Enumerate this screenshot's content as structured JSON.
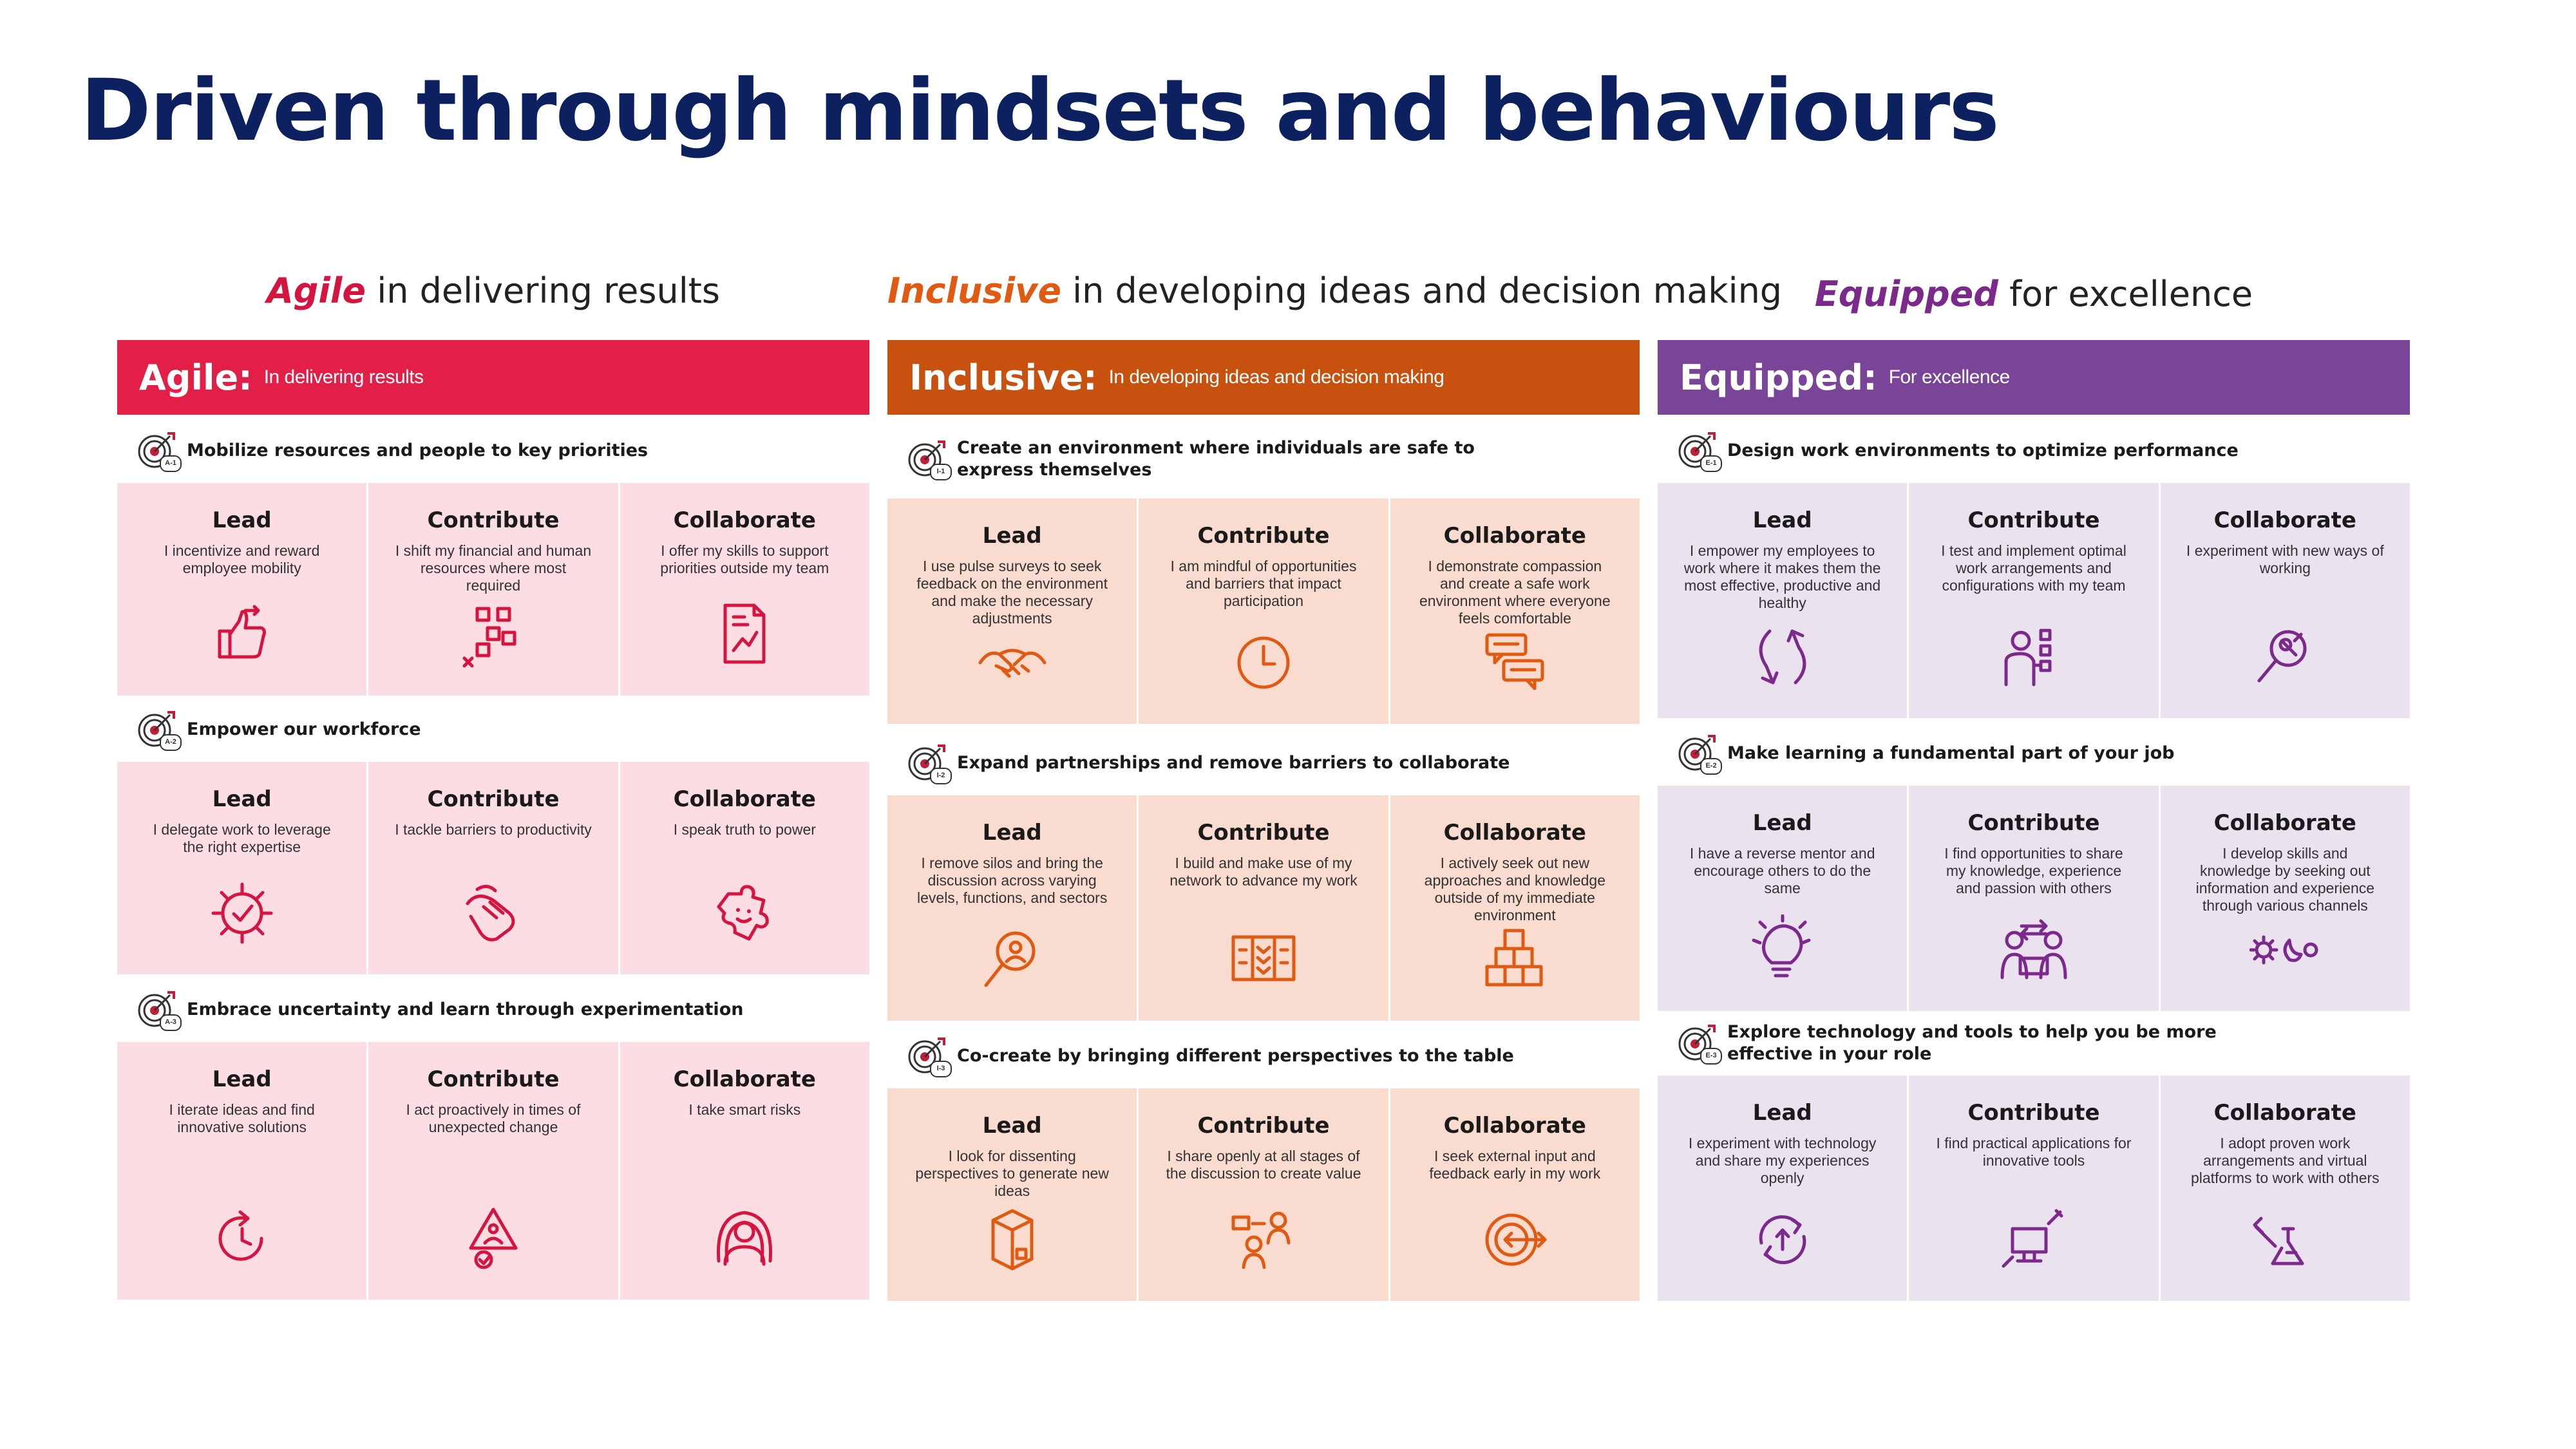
{
  "page_title": "Driven through mindsets and behaviours",
  "columns": [
    {
      "heading_emph": "Agile",
      "heading_rest": " in delivering results",
      "heading_color": "#d5143f",
      "banner_name": "Agile:",
      "banner_sub": "In delivering results",
      "banner_color": "#e31f47",
      "card_bg": "#fbdde3",
      "icon_color": "#d5143f",
      "sections": [
        {
          "code": "A-1",
          "title": "Mobilize resources and people to key priorities",
          "cards": [
            {
              "label": "Lead",
              "text": "I incentivize and reward employee mobility",
              "icon": "thumbs-up-icon"
            },
            {
              "label": "Contribute",
              "text": "I shift my financial and human resources where most required",
              "icon": "network-blocks-icon"
            },
            {
              "label": "Collaborate",
              "text": "I offer my skills to support priorities outside my team",
              "icon": "document-chart-icon"
            }
          ]
        },
        {
          "code": "A-2",
          "title": "Empower our workforce",
          "cards": [
            {
              "label": "Lead",
              "text": "I delegate work to leverage the right expertise",
              "icon": "gear-check-icon"
            },
            {
              "label": "Contribute",
              "text": "I tackle barriers to productivity",
              "icon": "hand-pointer-icon"
            },
            {
              "label": "Collaborate",
              "text": "I speak truth to power",
              "icon": "puzzle-face-icon"
            }
          ]
        },
        {
          "code": "A-3",
          "title": "Embrace uncertainty and learn through experimentation",
          "cards": [
            {
              "label": "Lead",
              "text": "I iterate ideas and find innovative solutions",
              "icon": "refresh-clock-icon"
            },
            {
              "label": "Contribute",
              "text": "I act proactively in times of unexpected change",
              "icon": "warning-person-icon"
            },
            {
              "label": "Collaborate",
              "text": "I take smart risks",
              "icon": "person-rings-icon"
            }
          ]
        }
      ]
    },
    {
      "heading_emph": "Inclusive",
      "heading_rest": " in developing ideas and decision making",
      "heading_color": "#e05a12",
      "banner_name": "Inclusive:",
      "banner_sub": "In developing ideas and decision making",
      "banner_color": "#c9510f",
      "card_bg": "#f9dccf",
      "icon_color": "#e05a12",
      "sections": [
        {
          "code": "I-1",
          "title": "Create an environment where individuals are safe to express themselves",
          "cards": [
            {
              "label": "Lead",
              "text": "I use pulse surveys to seek feedback on the environment and make the necessary adjustments",
              "icon": "handshake-icon"
            },
            {
              "label": "Contribute",
              "text": "I am mindful of opportunities and barriers that impact participation",
              "icon": "clock-icon"
            },
            {
              "label": "Collaborate",
              "text": "I demonstrate compassion and create a safe work environment where everyone feels comfortable",
              "icon": "chat-bubbles-icon"
            }
          ]
        },
        {
          "code": "I-2",
          "title": "Expand partnerships and remove barriers to collaborate",
          "cards": [
            {
              "label": "Lead",
              "text": "I remove silos and bring the discussion across varying levels, functions, and sectors",
              "icon": "magnifier-person-icon"
            },
            {
              "label": "Contribute",
              "text": "I build and make use of my network to advance my work",
              "icon": "network-panel-icon"
            },
            {
              "label": "Collaborate",
              "text": "I actively seek out new approaches and knowledge outside of my immediate environment",
              "icon": "stacked-boxes-icon"
            }
          ]
        },
        {
          "code": "I-3",
          "title": "Co-create by bringing different perspectives to the table",
          "cards": [
            {
              "label": "Lead",
              "text": "I look for dissenting perspectives to generate new ideas",
              "icon": "open-box-icon"
            },
            {
              "label": "Contribute",
              "text": "I share openly at all stages of the discussion to create value",
              "icon": "people-sharing-icon"
            },
            {
              "label": "Collaborate",
              "text": "I seek external input and feedback early in my work",
              "icon": "target-arrow-icon"
            }
          ]
        }
      ]
    },
    {
      "heading_emph": "Equipped",
      "heading_rest": " for excellence",
      "heading_color": "#7b2a8c",
      "banner_name": "Equipped:",
      "banner_sub": "For excellence",
      "banner_color": "#7a4599",
      "card_bg": "#ebe2f0",
      "icon_color": "#7b2a8c",
      "sections": [
        {
          "code": "E-1",
          "title": "Design work environments to optimize performance",
          "cards": [
            {
              "label": "Lead",
              "text": "I empower my employees to work where it makes them the most effective, productive and healthy",
              "icon": "swap-arrows-icon"
            },
            {
              "label": "Contribute",
              "text": "I test and implement optimal work arrangements and configurations with my team",
              "icon": "person-options-icon"
            },
            {
              "label": "Collaborate",
              "text": "I experiment with new ways of working",
              "icon": "wrench-magnifier-icon"
            }
          ]
        },
        {
          "code": "E-2",
          "title": "Make learning a fundamental part of your job",
          "cards": [
            {
              "label": "Lead",
              "text": "I have a reverse mentor and encourage others to do the same",
              "icon": "lightbulb-icon"
            },
            {
              "label": "Contribute",
              "text": "I find opportunities to share my knowledge, experience and passion with others",
              "icon": "people-exchange-icon"
            },
            {
              "label": "Collaborate",
              "text": "I develop skills and knowledge by seeking out information and experience through various channels",
              "icon": "sun-moon-icon"
            }
          ]
        },
        {
          "code": "E-3",
          "title": "Explore technology and tools to help you be more effective in your role",
          "cards": [
            {
              "label": "Lead",
              "text": "I experiment with technology and share my experiences openly",
              "icon": "cycle-upload-icon"
            },
            {
              "label": "Contribute",
              "text": "I find practical applications for innovative tools",
              "icon": "computer-tools-icon"
            },
            {
              "label": "Collaborate",
              "text": "I adopt proven work arrangements and virtual platforms to work with others",
              "icon": "flask-tools-icon"
            }
          ]
        }
      ]
    }
  ]
}
